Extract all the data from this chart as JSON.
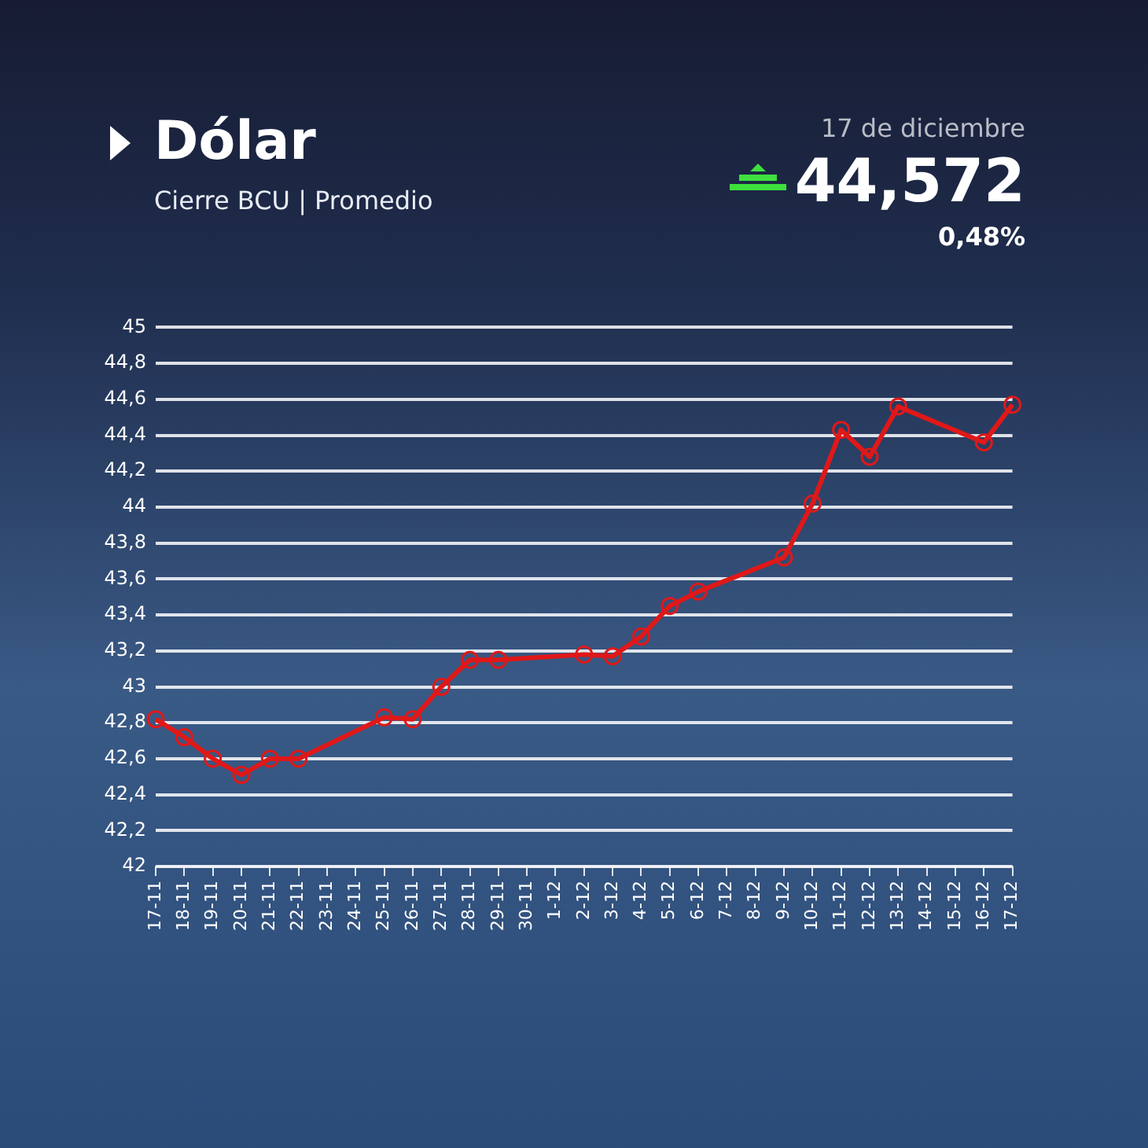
{
  "chart_data": {
    "type": "line",
    "title": "Dólar",
    "subtitle": "Cierre BCU | Promedio",
    "annotations": [
      "17 de diciembre",
      "44,572",
      "0,48%"
    ],
    "categories": [
      "17-11",
      "18-11",
      "19-11",
      "20-11",
      "21-11",
      "22-11",
      "23-11",
      "24-11",
      "25-11",
      "26-11",
      "27-11",
      "28-11",
      "29-11",
      "30-11",
      "1-12",
      "2-12",
      "3-12",
      "4-12",
      "5-12",
      "6-12",
      "7-12",
      "8-12",
      "9-12",
      "10-12",
      "11-12",
      "12-12",
      "13-12",
      "14-12",
      "15-12",
      "16-12",
      "17-12"
    ],
    "series": [
      {
        "color": "#e01818",
        "values": [
          42.82,
          42.72,
          42.6,
          42.51,
          42.6,
          42.6,
          null,
          null,
          42.83,
          42.82,
          43.0,
          43.15,
          43.15,
          null,
          null,
          43.18,
          43.17,
          43.28,
          43.45,
          43.53,
          null,
          null,
          43.72,
          44.02,
          44.43,
          44.28,
          44.56,
          null,
          null,
          44.36,
          44.57
        ]
      }
    ],
    "ylim": [
      42,
      45
    ],
    "yticks": [
      42,
      {
        "value": 42.2,
        "label": "42,2"
      },
      {
        "value": 42.4,
        "label": "42,4"
      },
      {
        "value": 42.6,
        "label": "42,6"
      },
      {
        "value": 42.8,
        "label": "42,8"
      },
      43,
      {
        "value": 43.2,
        "label": "43,2"
      },
      {
        "value": 43.4,
        "label": "43,4"
      },
      {
        "value": 43.6,
        "label": "43,6"
      },
      {
        "value": 43.8,
        "label": "43,8"
      },
      44,
      {
        "value": 44.2,
        "label": "44,2"
      },
      {
        "value": 44.4,
        "label": "44,4"
      },
      {
        "value": 44.6,
        "label": "44,6"
      },
      {
        "value": 44.8,
        "label": "44,8"
      },
      45
    ],
    "grid": "y",
    "legend": false,
    "marker": "circle",
    "line_style": "solid"
  }
}
